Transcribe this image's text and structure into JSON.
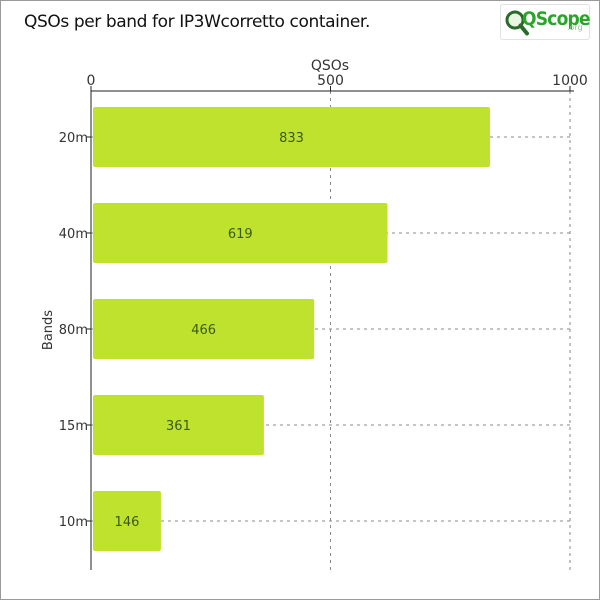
{
  "title": "QSOs per band for IP3Wcorretto container.",
  "logo": {
    "brand": "QScope",
    "tld": ".org"
  },
  "chart_data": {
    "type": "bar",
    "orientation": "horizontal",
    "title": "QSOs per band for IP3Wcorretto container.",
    "xlabel": "QSOs",
    "ylabel": "Bands",
    "xlim": [
      0,
      1000
    ],
    "xticks": [
      0,
      500,
      1000
    ],
    "x_axis_position": "top",
    "grid": "vertical dashed",
    "categories": [
      "20m",
      "40m",
      "80m",
      "15m",
      "10m"
    ],
    "values": [
      833,
      619,
      466,
      361,
      146
    ],
    "bar_color": "#bfe22f",
    "data_labels": true
  }
}
